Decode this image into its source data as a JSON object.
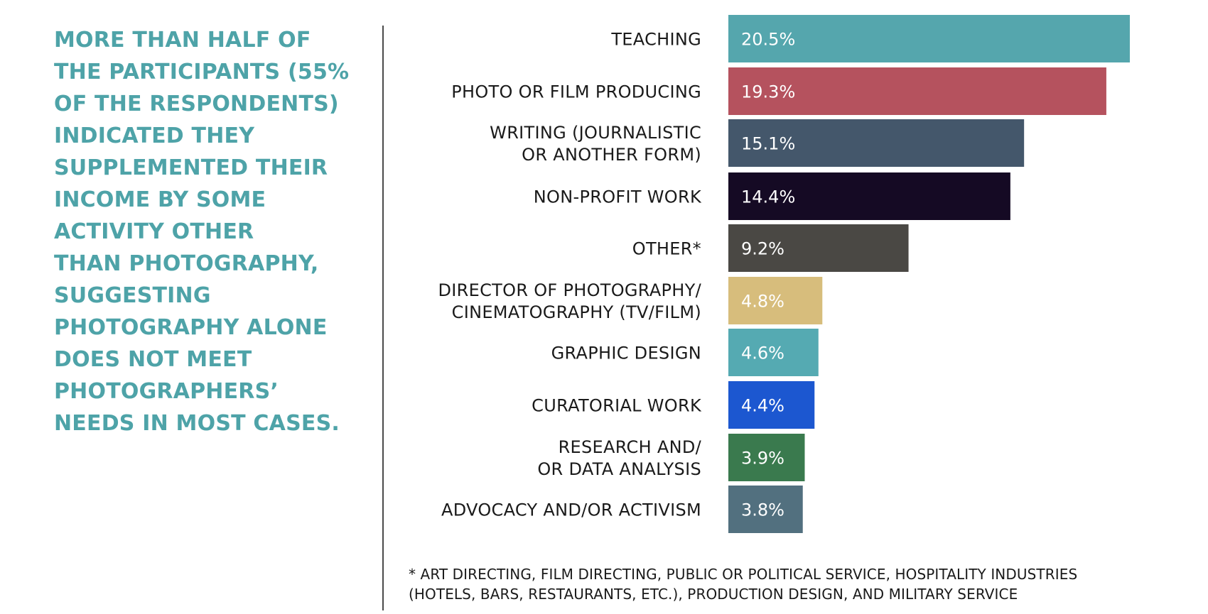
{
  "headline": {
    "lines": [
      "MORE THAN HALF OF",
      "THE PARTICIPANTS (55%",
      "OF THE RESPONDENTS)",
      "INDICATED THEY",
      "SUPPLEMENTED THEIR",
      "INCOME BY SOME",
      "ACTIVITY OTHER",
      "THAN PHOTOGRAPHY,",
      "SUGGESTING",
      "PHOTOGRAPHY ALONE",
      "DOES NOT MEET",
      "PHOTOGRAPHERS’",
      "NEEDS IN MOST CASES."
    ],
    "color": "#4ea3a8"
  },
  "chart_data": {
    "type": "bar",
    "orientation": "horizontal",
    "categories": [
      [
        "TEACHING"
      ],
      [
        "PHOTO OR FILM PRODUCING"
      ],
      [
        "WRITING (JOURNALISTIC",
        "OR ANOTHER FORM)"
      ],
      [
        "NON-PROFIT WORK"
      ],
      [
        "OTHER*"
      ],
      [
        "DIRECTOR OF PHOTOGRAPHY/",
        "CINEMATOGRAPHY (TV/FILM)"
      ],
      [
        "GRAPHIC DESIGN"
      ],
      [
        "CURATORIAL WORK"
      ],
      [
        "RESEARCH AND/",
        "OR DATA ANALYSIS"
      ],
      [
        "ADVOCACY AND/OR ACTIVISM"
      ]
    ],
    "values": [
      20.5,
      19.3,
      15.1,
      14.4,
      9.2,
      4.8,
      4.6,
      4.4,
      3.9,
      3.8
    ],
    "value_labels": [
      "20.5%",
      "19.3%",
      "15.1%",
      "14.4%",
      "9.2%",
      "4.8%",
      "4.6%",
      "4.4%",
      "3.9%",
      "3.8%"
    ],
    "colors": [
      "#55a6ad",
      "#b5525e",
      "#44576b",
      "#150a24",
      "#4a4844",
      "#d7bd7c",
      "#55aab2",
      "#1c57d0",
      "#3a7a4e",
      "#52707f"
    ],
    "xlim": [
      0,
      20.5
    ],
    "grid": false,
    "legend": "none"
  },
  "footnote": {
    "lines": [
      "* ART DIRECTING, FILM DIRECTING, PUBLIC OR POLITICAL SERVICE, HOSPITALITY INDUSTRIES",
      "(HOTELS, BARS, RESTAURANTS, ETC.), PRODUCTION DESIGN, AND MILITARY SERVICE"
    ]
  }
}
